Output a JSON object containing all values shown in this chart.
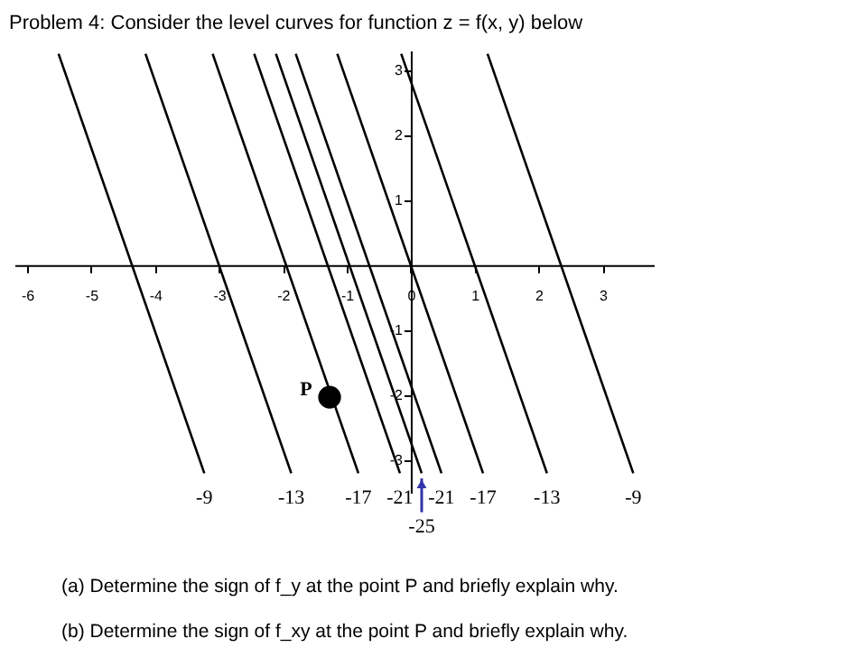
{
  "chart_data": {
    "type": "line",
    "title": "Problem 4: Consider the level curves for function z = f(x, y) below",
    "xlim": [
      -6.2,
      3.8
    ],
    "ylim": [
      -3.5,
      3.3
    ],
    "xticks": [
      -6,
      -5,
      -4,
      -3,
      -2,
      -1,
      0,
      1,
      2,
      3
    ],
    "yticks": [
      -3,
      -2,
      -1,
      1,
      2,
      3
    ],
    "series": [
      {
        "name": "-9",
        "color": "#000000",
        "x": [
          -5.51,
          -3.23
        ],
        "values": [
          3.25,
          -3.2
        ]
      },
      {
        "name": "-13",
        "color": "#000000",
        "x": [
          -4.15,
          -1.87
        ],
        "values": [
          3.25,
          -3.2
        ]
      },
      {
        "name": "-17",
        "color": "#000000",
        "x": [
          -3.1,
          -0.82
        ],
        "values": [
          3.25,
          -3.2
        ]
      },
      {
        "name": "-21",
        "color": "#000000",
        "x": [
          -2.45,
          -0.17
        ],
        "values": [
          3.25,
          -3.2
        ]
      },
      {
        "name": "-25",
        "color": "#000000",
        "x": [
          -2.11,
          0.17
        ],
        "values": [
          3.25,
          -3.2
        ]
      },
      {
        "name": "-21",
        "color": "#000000",
        "x": [
          -1.8,
          0.48
        ],
        "values": [
          3.25,
          -3.2
        ]
      },
      {
        "name": "-17",
        "color": "#000000",
        "x": [
          -1.15,
          1.13
        ],
        "values": [
          3.25,
          -3.2
        ]
      },
      {
        "name": "-13",
        "color": "#000000",
        "x": [
          -0.15,
          2.13
        ],
        "values": [
          3.25,
          -3.2
        ]
      },
      {
        "name": "-9",
        "color": "#000000",
        "x": [
          1.2,
          3.48
        ],
        "values": [
          3.25,
          -3.2
        ]
      },
      {
        "name": "P",
        "type": "scatter",
        "marker": "circle",
        "color": "#000000",
        "x": [
          -1.27
        ],
        "values": [
          -2.03
        ]
      }
    ],
    "annotations": [
      "(a) Determine the sign of f_y at the point P and briefly explain why.",
      "(b) Determine the sign of f_xy at the point P and briefly explain why."
    ]
  }
}
